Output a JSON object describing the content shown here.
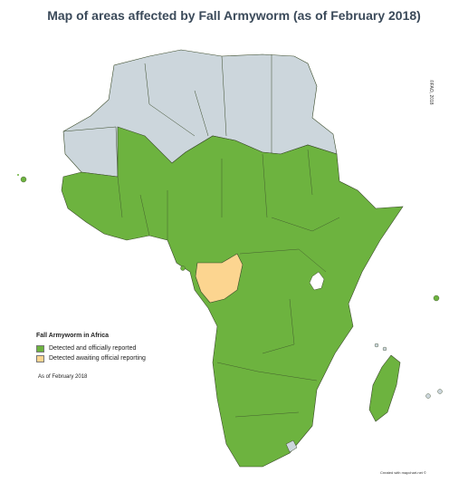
{
  "title": "Map of areas affected by Fall Armyworm (as of February 2018)",
  "legend": {
    "heading": "Fall Armyworm in Africa",
    "items": [
      {
        "label": "Detected and officially reported",
        "color": "#6db33f"
      },
      {
        "label": "Detected awaiting official reporting",
        "color": "#fcd590"
      }
    ]
  },
  "as_of": "As of February 2018",
  "copyright": "©FAO, 2018",
  "credit": "Created with mapchart.net ©",
  "colors": {
    "affected": "#6db33f",
    "awaiting": "#fcd590",
    "not_affected": "#ccd6dc",
    "border": "#3a4a2a"
  }
}
